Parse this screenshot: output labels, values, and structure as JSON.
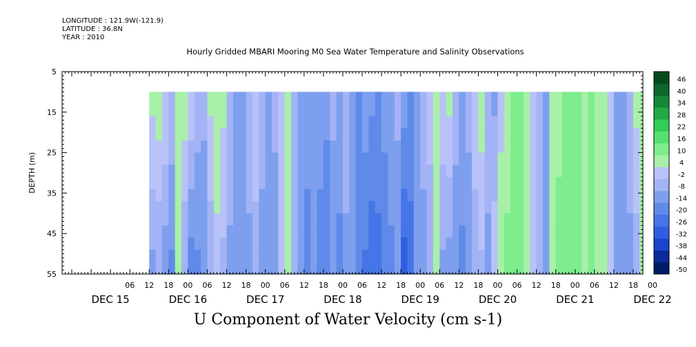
{
  "header": {
    "longitude": "LONGITUDE : 121.9W(-121.9)",
    "latitude": "LATITUDE : 36.8N",
    "year": "YEAR : 2010"
  },
  "chart_data": {
    "type": "heatmap",
    "title": "Hourly Gridded MBARI Mooring M0 Sea Water Temperature and Salinity Observations",
    "xlabel": "",
    "ylabel": "DEPTH (m)",
    "caption": "U Component of Water Velocity (cm s-1)",
    "x_unit": "hours since Dec 15 00:00, 2010",
    "xlim": [
      -15,
      165
    ],
    "ylim": [
      55,
      5
    ],
    "data_xrange": [
      12,
      164
    ],
    "data_yrange": [
      10,
      55
    ],
    "y_ticks": [
      5,
      15,
      25,
      35,
      45,
      55
    ],
    "x_hour_labels": [
      "06",
      "12",
      "18",
      "00",
      "06",
      "12",
      "18",
      "00",
      "06",
      "12",
      "18",
      "00",
      "06",
      "12",
      "18",
      "00",
      "06",
      "12",
      "18",
      "00",
      "06",
      "12",
      "18",
      "00",
      "06",
      "12",
      "18",
      "00"
    ],
    "x_day_labels": [
      {
        "label": "DEC 15",
        "hour": 0
      },
      {
        "label": "DEC 16",
        "hour": 24
      },
      {
        "label": "DEC 17",
        "hour": 48
      },
      {
        "label": "DEC 18",
        "hour": 72
      },
      {
        "label": "DEC 19",
        "hour": 96
      },
      {
        "label": "DEC 20",
        "hour": 120
      },
      {
        "label": "DEC 21",
        "hour": 144
      },
      {
        "label": "DEC 22",
        "hour": 168
      }
    ],
    "colorbar": {
      "levels": [
        -50,
        -44,
        -38,
        -32,
        -26,
        -20,
        -14,
        -8,
        -2,
        4,
        10,
        16,
        22,
        28,
        34,
        40,
        46
      ],
      "labels": [
        "46",
        "40",
        "34",
        "28",
        "22",
        "16",
        "10",
        "4",
        "-2",
        "-8",
        "-14",
        "-20",
        "-26",
        "-32",
        "-38",
        "-44",
        "-50"
      ],
      "colors": [
        "#001c66",
        "#0a2b99",
        "#1a44cc",
        "#2f5fe0",
        "#4575e6",
        "#5f8ae9",
        "#7e9fee",
        "#a3b3f5",
        "#b8c2f8",
        "#a8f0a8",
        "#7ded8d",
        "#55e070",
        "#33cc55",
        "#22aa44",
        "#178838",
        "#0d662a",
        "#064a1c"
      ]
    },
    "columns": [
      {
        "hour": 12,
        "surface": 6,
        "bottom": -10
      },
      {
        "hour": 14,
        "surface": 8,
        "bottom": -8
      },
      {
        "hour": 16,
        "surface": 4,
        "bottom": -12
      },
      {
        "hour": 18,
        "surface": -2,
        "bottom": -16
      },
      {
        "hour": 20,
        "surface": 6,
        "bottom": 4
      },
      {
        "hour": 22,
        "surface": 8,
        "bottom": -8
      },
      {
        "hour": 24,
        "surface": 4,
        "bottom": -18
      },
      {
        "hour": 26,
        "surface": -4,
        "bottom": -16
      },
      {
        "hour": 28,
        "surface": -6,
        "bottom": -14
      },
      {
        "hour": 30,
        "surface": 6,
        "bottom": -8
      },
      {
        "hour": 32,
        "surface": 8,
        "bottom": 2
      },
      {
        "hour": 34,
        "surface": 6,
        "bottom": -4
      },
      {
        "hour": 36,
        "surface": -2,
        "bottom": -10
      },
      {
        "hour": 38,
        "surface": -8,
        "bottom": -14
      },
      {
        "hour": 40,
        "surface": -10,
        "bottom": -12
      },
      {
        "hour": 42,
        "surface": -4,
        "bottom": -10
      },
      {
        "hour": 44,
        "surface": 4,
        "bottom": -6
      },
      {
        "hour": 46,
        "surface": -6,
        "bottom": -10
      },
      {
        "hour": 48,
        "surface": -8,
        "bottom": -14
      },
      {
        "hour": 50,
        "surface": -6,
        "bottom": -12
      },
      {
        "hour": 52,
        "surface": 2,
        "bottom": -2
      },
      {
        "hour": 54,
        "surface": 6,
        "bottom": 4
      },
      {
        "hour": 56,
        "surface": -4,
        "bottom": -8
      },
      {
        "hour": 58,
        "surface": -10,
        "bottom": -14
      },
      {
        "hour": 60,
        "surface": -12,
        "bottom": -16
      },
      {
        "hour": 62,
        "surface": -8,
        "bottom": -14
      },
      {
        "hour": 64,
        "surface": -10,
        "bottom": -18
      },
      {
        "hour": 66,
        "surface": -12,
        "bottom": -20
      },
      {
        "hour": 68,
        "surface": -6,
        "bottom": -14
      },
      {
        "hour": 70,
        "surface": -10,
        "bottom": -16
      },
      {
        "hour": 72,
        "surface": -4,
        "bottom": -10
      },
      {
        "hour": 74,
        "surface": -8,
        "bottom": -14
      },
      {
        "hour": 76,
        "surface": -14,
        "bottom": -20
      },
      {
        "hour": 78,
        "surface": -10,
        "bottom": -22
      },
      {
        "hour": 80,
        "surface": -12,
        "bottom": -26
      },
      {
        "hour": 82,
        "surface": -16,
        "bottom": -22
      },
      {
        "hour": 84,
        "surface": -12,
        "bottom": -18
      },
      {
        "hour": 86,
        "surface": -8,
        "bottom": -16
      },
      {
        "hour": 88,
        "surface": -6,
        "bottom": -14
      },
      {
        "hour": 90,
        "surface": -10,
        "bottom": -30
      },
      {
        "hour": 92,
        "surface": -14,
        "bottom": -24
      },
      {
        "hour": 94,
        "surface": -8,
        "bottom": -14
      },
      {
        "hour": 96,
        "surface": -4,
        "bottom": -12
      },
      {
        "hour": 98,
        "surface": 2,
        "bottom": -8
      },
      {
        "hour": 100,
        "surface": 6,
        "bottom": 4
      },
      {
        "hour": 102,
        "surface": 4,
        "bottom": -10
      },
      {
        "hour": 104,
        "surface": 6,
        "bottom": -12
      },
      {
        "hour": 106,
        "surface": -4,
        "bottom": -14
      },
      {
        "hour": 108,
        "surface": -8,
        "bottom": -16
      },
      {
        "hour": 110,
        "surface": -6,
        "bottom": -12
      },
      {
        "hour": 112,
        "surface": 4,
        "bottom": -8
      },
      {
        "hour": 114,
        "surface": 8,
        "bottom": -4
      },
      {
        "hour": 116,
        "surface": -4,
        "bottom": -10
      },
      {
        "hour": 118,
        "surface": -10,
        "bottom": 4
      },
      {
        "hour": 120,
        "surface": 2,
        "bottom": 8
      },
      {
        "hour": 122,
        "surface": 6,
        "bottom": 12
      },
      {
        "hour": 124,
        "surface": 10,
        "bottom": 14
      },
      {
        "hour": 126,
        "surface": 12,
        "bottom": 12
      },
      {
        "hour": 128,
        "surface": 8,
        "bottom": 10
      },
      {
        "hour": 130,
        "surface": 2,
        "bottom": 4
      },
      {
        "hour": 132,
        "surface": -4,
        "bottom": -8
      },
      {
        "hour": 134,
        "surface": -8,
        "bottom": -10
      },
      {
        "hour": 136,
        "surface": 4,
        "bottom": 8
      },
      {
        "hour": 138,
        "surface": 8,
        "bottom": 12
      },
      {
        "hour": 140,
        "surface": 10,
        "bottom": 12
      },
      {
        "hour": 142,
        "surface": 12,
        "bottom": 14
      },
      {
        "hour": 144,
        "surface": 10,
        "bottom": 12
      },
      {
        "hour": 146,
        "surface": 8,
        "bottom": 10
      },
      {
        "hour": 148,
        "surface": 10,
        "bottom": 10
      },
      {
        "hour": 150,
        "surface": 8,
        "bottom": 8
      },
      {
        "hour": 152,
        "surface": 4,
        "bottom": 6
      },
      {
        "hour": 154,
        "surface": -2,
        "bottom": 4
      },
      {
        "hour": 156,
        "surface": -8,
        "bottom": -12
      },
      {
        "hour": 158,
        "surface": -10,
        "bottom": -14
      },
      {
        "hour": 160,
        "surface": -4,
        "bottom": -10
      },
      {
        "hour": 162,
        "surface": 6,
        "bottom": -6
      },
      {
        "hour": 164,
        "surface": 8,
        "bottom": 4
      }
    ]
  }
}
